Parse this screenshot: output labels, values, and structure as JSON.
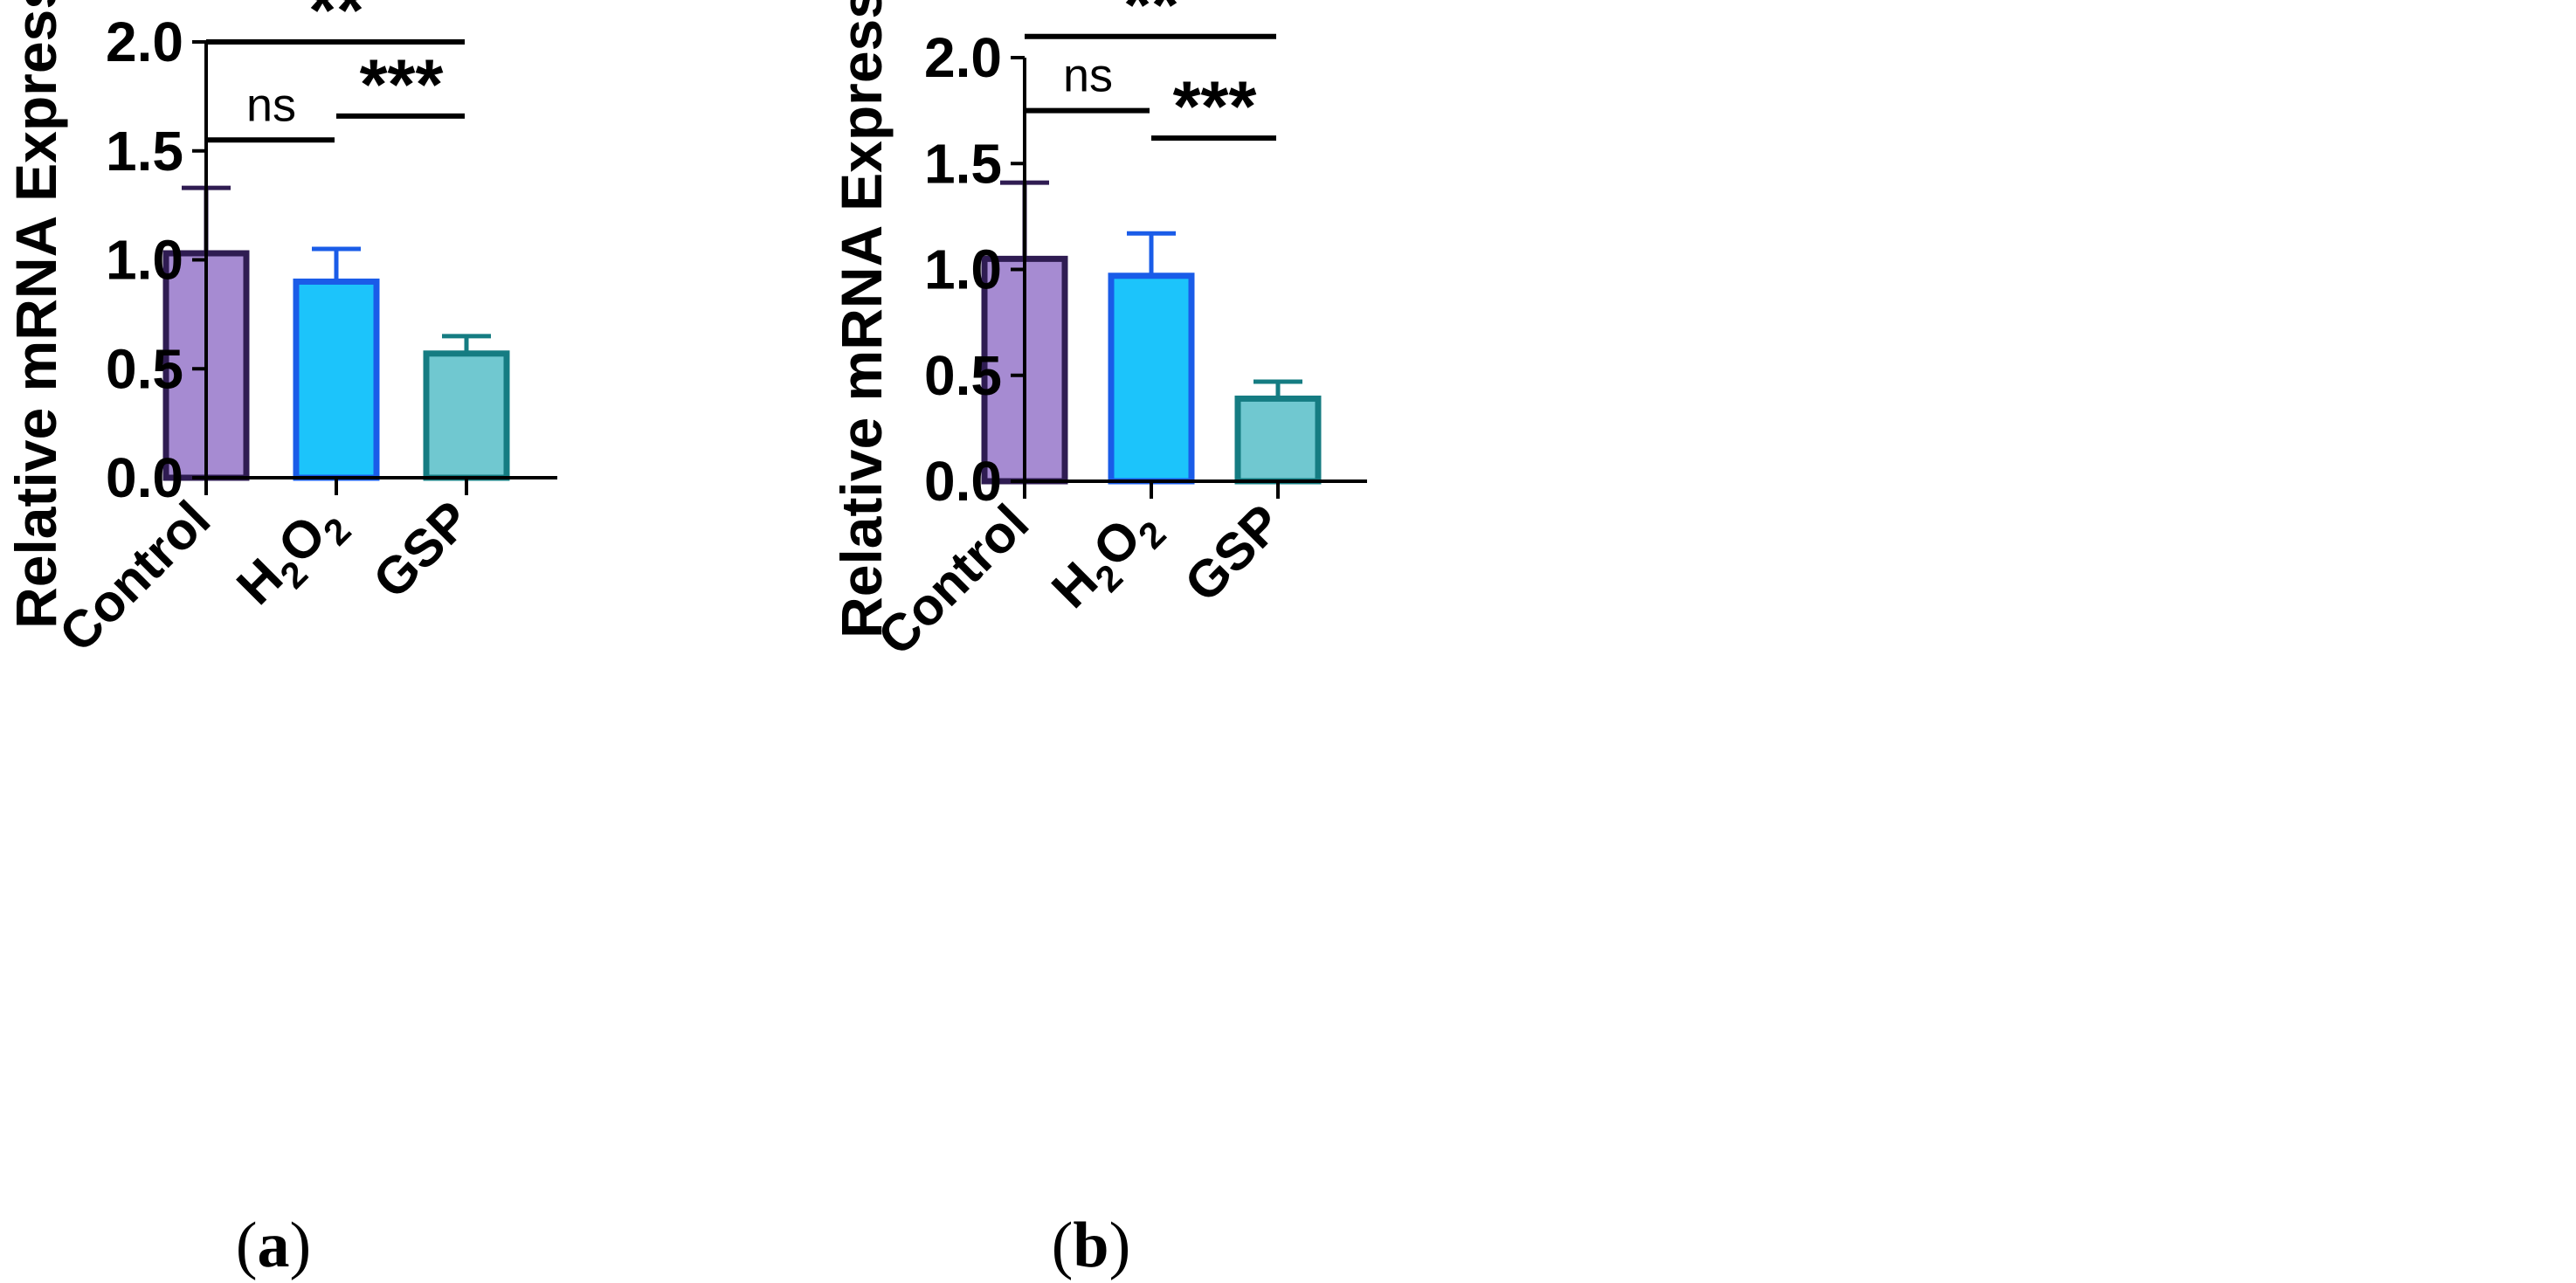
{
  "chart_data": [
    {
      "type": "bar",
      "panel_label": {
        "open": "(",
        "letter": "a",
        "close": ")"
      },
      "ylabel": "Relative mRNA Expression",
      "xlabel": "",
      "ylim": [
        0,
        2.0
      ],
      "yticks": [
        0.0,
        0.5,
        1.0,
        1.5,
        2.0
      ],
      "ytick_labels": [
        "0.0",
        "0.5",
        "1.0",
        "1.5",
        "2.0"
      ],
      "categories": [
        {
          "base": "Control",
          "sub1": "",
          "mid": "",
          "sub2": ""
        },
        {
          "base": "H",
          "sub1": "2",
          "mid": "O",
          "sub2": "2"
        },
        {
          "base": "GSP",
          "sub1": "",
          "mid": "",
          "sub2": ""
        }
      ],
      "values": [
        1.03,
        0.9,
        0.57
      ],
      "errors": [
        0.3,
        0.15,
        0.08
      ],
      "fill_colors": [
        "#a68bd2",
        "#1cc4fb",
        "#70c8d0"
      ],
      "edge_colors": [
        "#2f1c52",
        "#1a5ce8",
        "#157c82"
      ],
      "significance": [
        {
          "from": 0,
          "to": 2,
          "y": 2.0,
          "label": "**"
        },
        {
          "from": 0,
          "to": 1,
          "y": 1.55,
          "label": "ns"
        },
        {
          "from": 1,
          "to": 2,
          "y": 1.66,
          "label": "***"
        }
      ]
    },
    {
      "type": "bar",
      "panel_label": {
        "open": "(",
        "letter": "b",
        "close": ")"
      },
      "ylabel": "Relative mRNA Expression",
      "xlabel": "",
      "ylim": [
        0,
        2.0
      ],
      "yticks": [
        0.0,
        0.5,
        1.0,
        1.5,
        2.0
      ],
      "ytick_labels": [
        "0.0",
        "0.5",
        "1.0",
        "1.5",
        "2.0"
      ],
      "categories": [
        {
          "base": "Control",
          "sub1": "",
          "mid": "",
          "sub2": ""
        },
        {
          "base": "H",
          "sub1": "2",
          "mid": "O",
          "sub2": "2"
        },
        {
          "base": "GSP",
          "sub1": "",
          "mid": "",
          "sub2": ""
        }
      ],
      "values": [
        1.05,
        0.97,
        0.39
      ],
      "errors": [
        0.36,
        0.2,
        0.08
      ],
      "fill_colors": [
        "#a68bd2",
        "#1cc4fb",
        "#70c8d0"
      ],
      "edge_colors": [
        "#2f1c52",
        "#1a5ce8",
        "#157c82"
      ],
      "significance": [
        {
          "from": 0,
          "to": 2,
          "y": 2.1,
          "label": "**"
        },
        {
          "from": 0,
          "to": 1,
          "y": 1.75,
          "label": "ns"
        },
        {
          "from": 1,
          "to": 2,
          "y": 1.62,
          "label": "***"
        }
      ]
    }
  ]
}
